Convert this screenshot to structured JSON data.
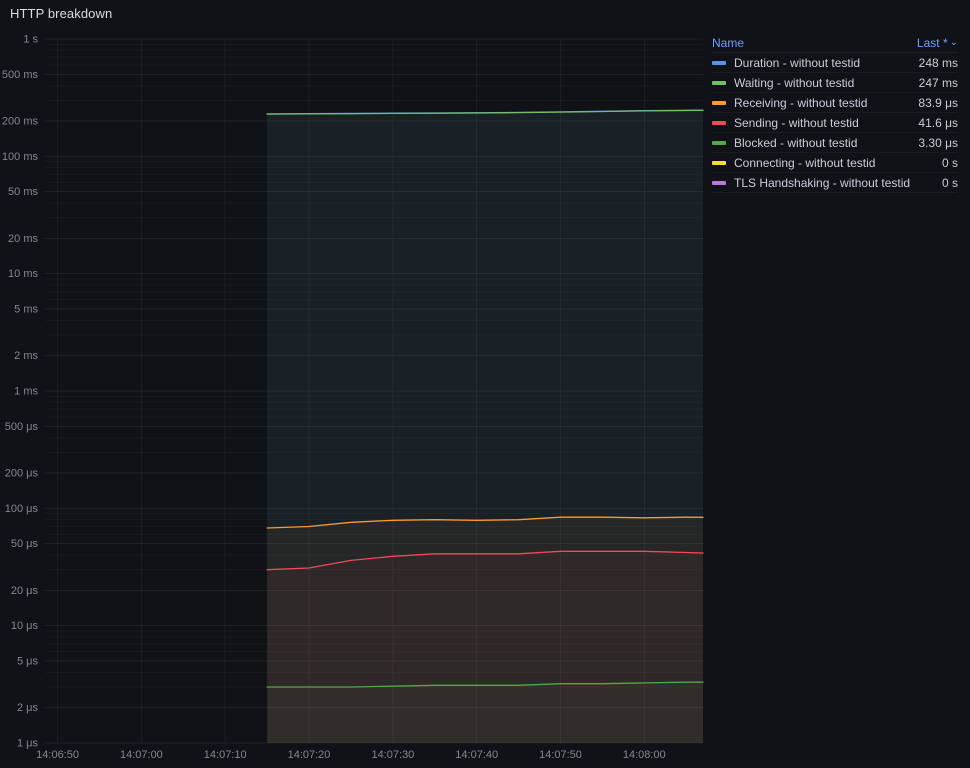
{
  "panel": {
    "title": "HTTP breakdown"
  },
  "legend": {
    "header": {
      "name": "Name",
      "last": "Last *",
      "sort_caret": "⌄"
    }
  },
  "chart_data": {
    "type": "line",
    "title": "HTTP breakdown",
    "grid": true,
    "legend_position": "right-table",
    "x_axis": {
      "type": "time",
      "domain_s": [
        -1.5,
        77
      ],
      "ticks": [
        {
          "t": 0,
          "label": "14:06:50"
        },
        {
          "t": 10,
          "label": "14:07:00"
        },
        {
          "t": 20,
          "label": "14:07:10"
        },
        {
          "t": 30,
          "label": "14:07:20"
        },
        {
          "t": 40,
          "label": "14:07:30"
        },
        {
          "t": 50,
          "label": "14:07:40"
        },
        {
          "t": 60,
          "label": "14:07:50"
        },
        {
          "t": 70,
          "label": "14:08:00"
        }
      ]
    },
    "y_axis": {
      "type": "log10",
      "unit": "duration",
      "range_us": [
        1,
        1000000
      ],
      "minor_multiples": [
        3,
        4,
        6,
        7,
        8,
        9
      ],
      "ticks": [
        {
          "us": 1000000,
          "label": "1 s"
        },
        {
          "us": 500000,
          "label": "500 ms"
        },
        {
          "us": 200000,
          "label": "200 ms"
        },
        {
          "us": 100000,
          "label": "100 ms"
        },
        {
          "us": 50000,
          "label": "50 ms"
        },
        {
          "us": 20000,
          "label": "20 ms"
        },
        {
          "us": 10000,
          "label": "10 ms"
        },
        {
          "us": 5000,
          "label": "5 ms"
        },
        {
          "us": 2000,
          "label": "2 ms"
        },
        {
          "us": 1000,
          "label": "1 ms"
        },
        {
          "us": 500,
          "label": "500 μs"
        },
        {
          "us": 200,
          "label": "200 μs"
        },
        {
          "us": 100,
          "label": "100 μs"
        },
        {
          "us": 50,
          "label": "50 μs"
        },
        {
          "us": 20,
          "label": "20 μs"
        },
        {
          "us": 10,
          "label": "10 μs"
        },
        {
          "us": 5,
          "label": "5 μs"
        },
        {
          "us": 2,
          "label": "2 μs"
        },
        {
          "us": 1,
          "label": "1 μs"
        }
      ]
    },
    "series": [
      {
        "name": "Duration - without testid",
        "color": "#5794F2",
        "last": "248 ms",
        "t_s": [
          25,
          30,
          35,
          40,
          45,
          50,
          55,
          60,
          65,
          70,
          75,
          77
        ],
        "value_us": [
          230000,
          231000,
          232000,
          233000,
          234000,
          235000,
          237000,
          239000,
          242000,
          245000,
          247000,
          248000
        ]
      },
      {
        "name": "Waiting - without testid",
        "color": "#73BF69",
        "last": "247 ms",
        "t_s": [
          25,
          30,
          35,
          40,
          45,
          50,
          55,
          60,
          65,
          70,
          75,
          77
        ],
        "value_us": [
          229000,
          230000,
          231000,
          232000,
          233000,
          234000,
          236000,
          238000,
          241000,
          244000,
          246000,
          247000
        ]
      },
      {
        "name": "Receiving - without testid",
        "color": "#FF9830",
        "last": "83.9 μs",
        "t_s": [
          25,
          30,
          35,
          40,
          45,
          50,
          55,
          60,
          65,
          70,
          75,
          77
        ],
        "value_us": [
          68,
          70,
          76,
          79,
          80,
          79,
          80,
          84,
          84,
          83,
          84,
          83.9
        ]
      },
      {
        "name": "Sending - without testid",
        "color": "#F2495C",
        "last": "41.6 μs",
        "t_s": [
          25,
          30,
          35,
          40,
          45,
          50,
          55,
          60,
          65,
          70,
          75,
          77
        ],
        "value_us": [
          30,
          31,
          36,
          39,
          41,
          41,
          41,
          43,
          43,
          43,
          42,
          41.6
        ]
      },
      {
        "name": "Blocked - without testid",
        "color": "#56A64B",
        "last": "3.30 μs",
        "t_s": [
          25,
          30,
          35,
          40,
          45,
          50,
          55,
          60,
          65,
          70,
          75,
          77
        ],
        "value_us": [
          3.0,
          3.0,
          3.0,
          3.05,
          3.1,
          3.1,
          3.1,
          3.2,
          3.2,
          3.25,
          3.3,
          3.3
        ]
      },
      {
        "name": "Connecting - without testid",
        "color": "#FADE2A",
        "last": "0 s",
        "t_s": [],
        "value_us": []
      },
      {
        "name": "TLS Handshaking - without testid",
        "color": "#B877D9",
        "last": "0 s",
        "t_s": [],
        "value_us": []
      }
    ]
  }
}
